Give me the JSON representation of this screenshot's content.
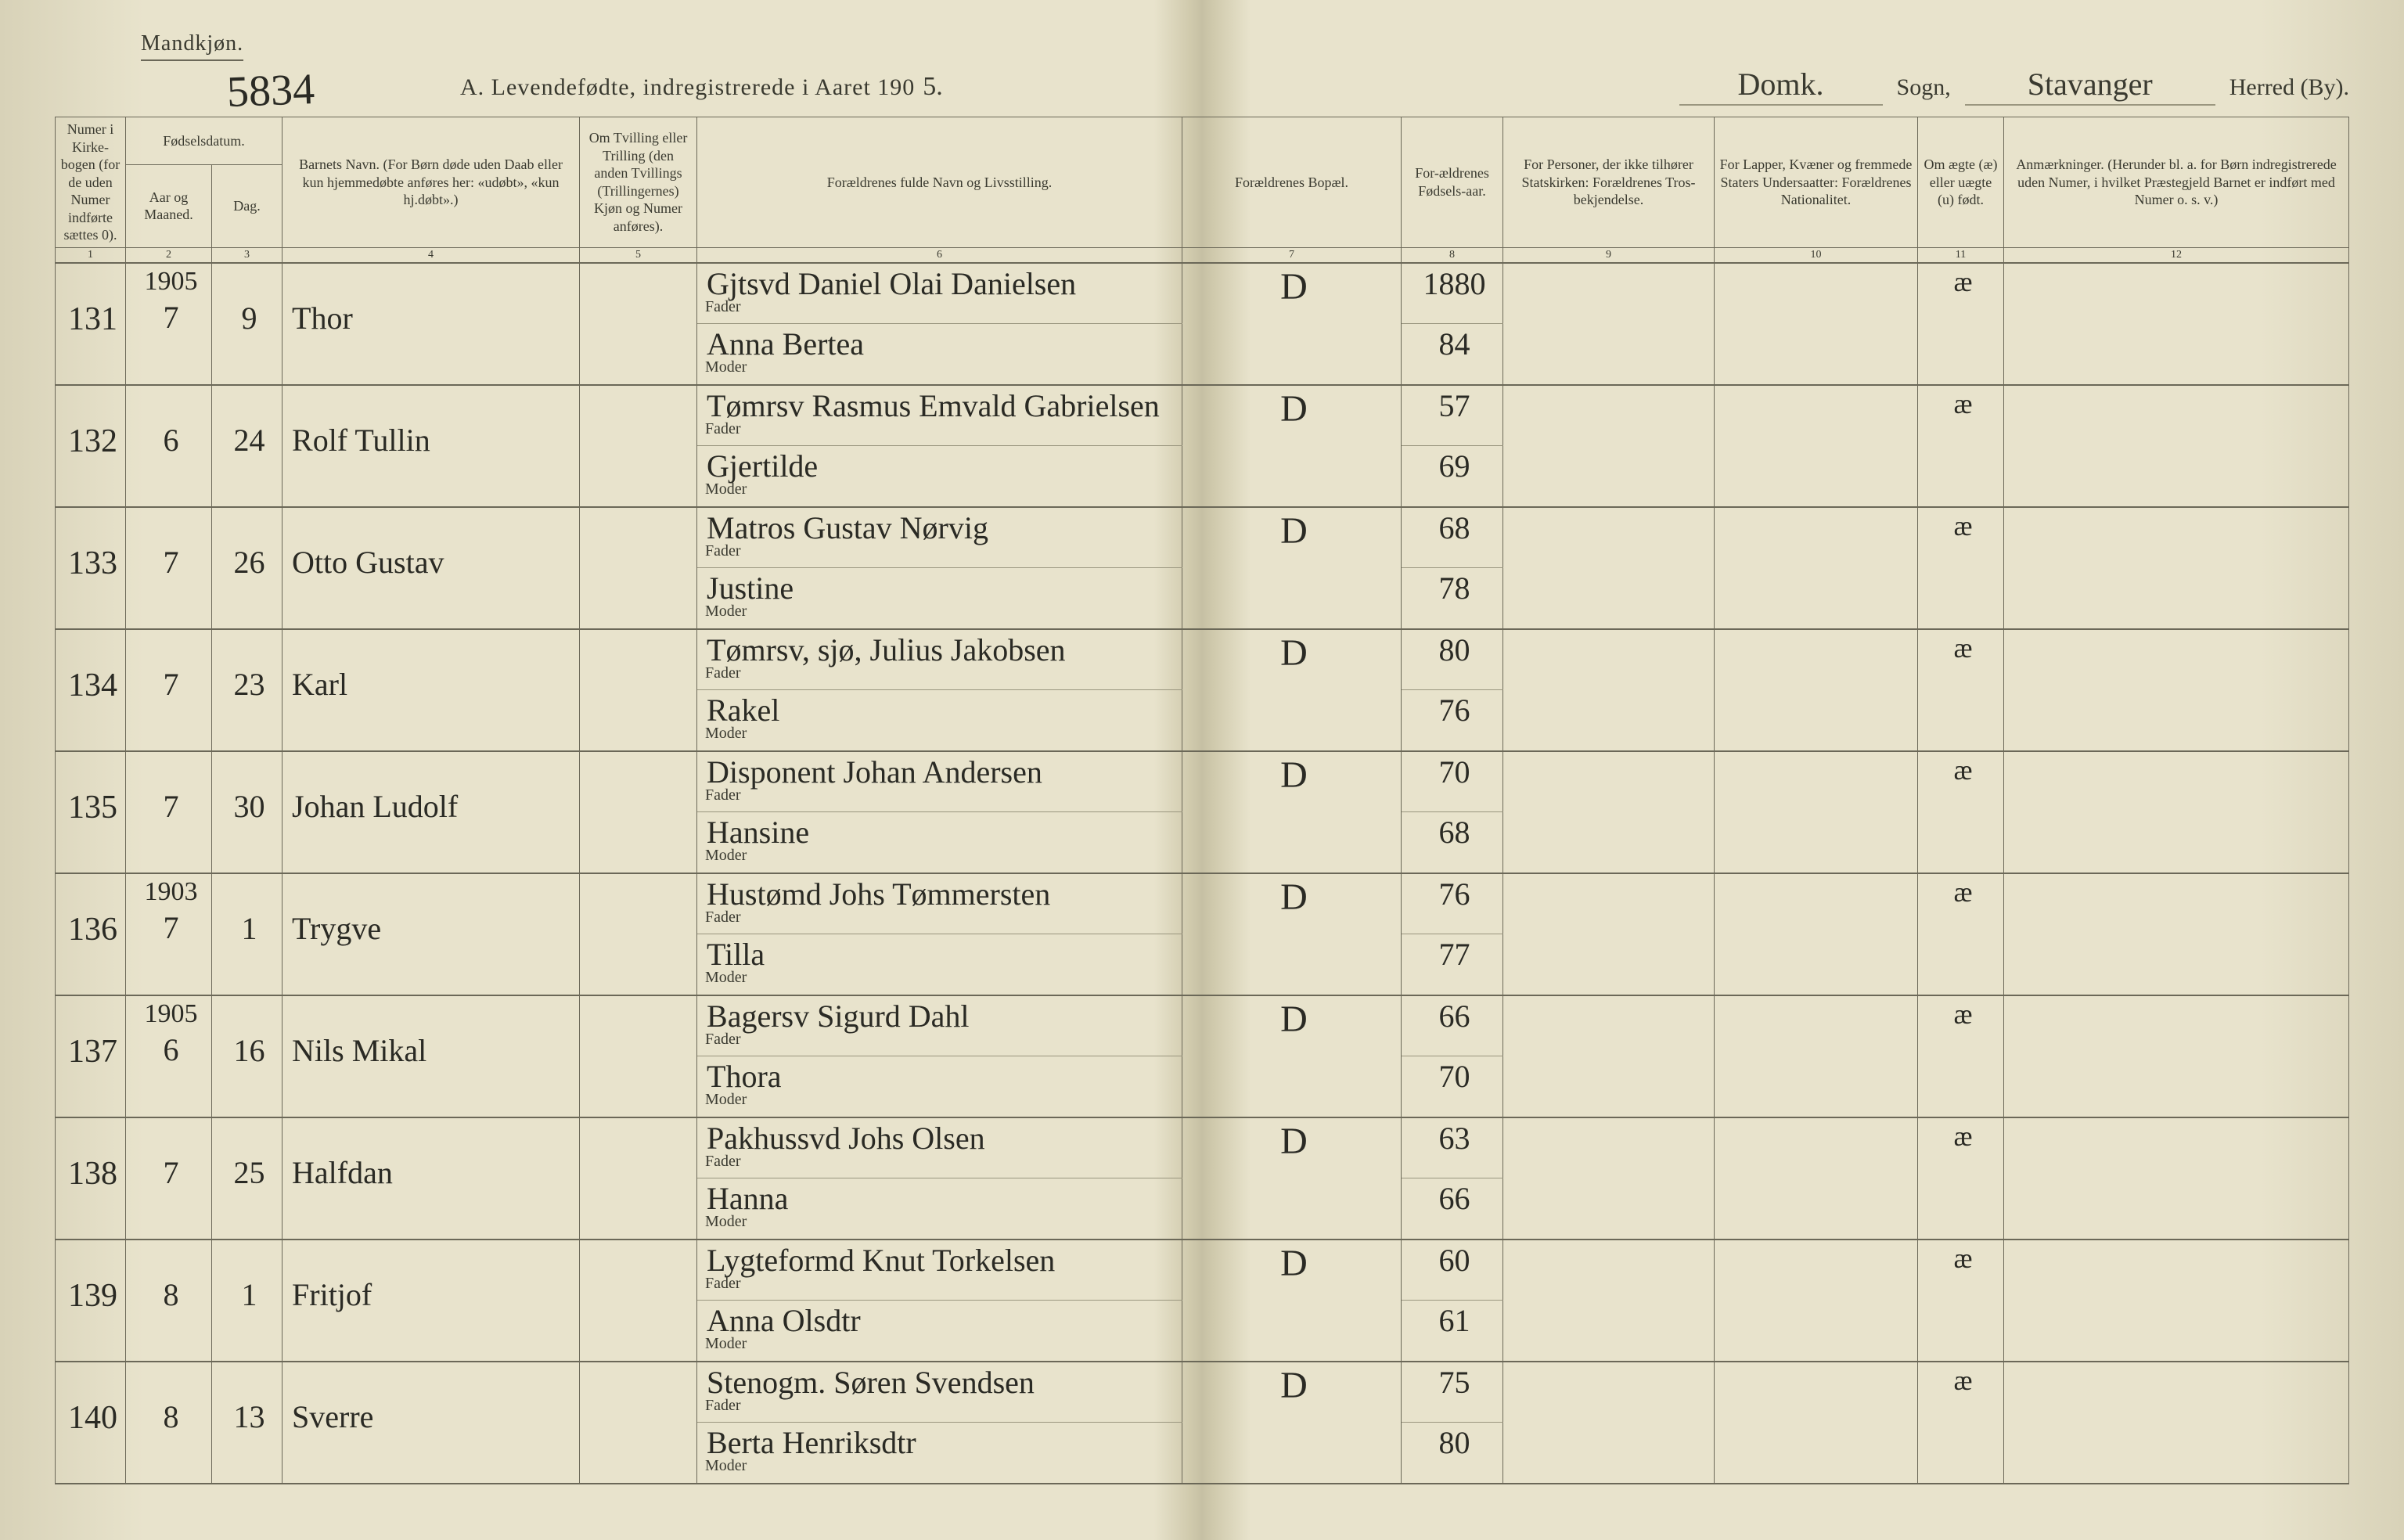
{
  "header": {
    "gender_label": "Mandkjøn.",
    "page_number_written": "5834",
    "title_prefix": "A.  Levendefødte, indregistrerede i Aaret 190",
    "year_suffix": "5.",
    "sogn_label": "Sogn,",
    "sogn_value": "Domk.",
    "herred_label": "Herred (By).",
    "herred_value": "Stavanger"
  },
  "columns": {
    "c1": "Numer i Kirke-bogen (for de uden Numer indførte sættes 0).",
    "c2_group": "Fødselsdatum.",
    "c2": "Aar og Maaned.",
    "c3": "Dag.",
    "c4": "Barnets Navn.\n(For Børn døde uden Daab eller kun hjemmedøbte anføres her: «udøbt», «kun hj.døbt».)",
    "c5": "Om Tvilling eller Trilling (den anden Tvillings (Trillingernes) Kjøn og Numer anføres).",
    "c6": "Forældrenes fulde Navn og Livsstilling.",
    "c7": "Forældrenes Bopæl.",
    "c8": "For-ældrenes Fødsels-aar.",
    "c9": "For Personer, der ikke tilhører Statskirken: Forældrenes Tros-bekjendelse.",
    "c10": "For Lapper, Kvæner og fremmede Staters Undersaatter: Forældrenes Nationalitet.",
    "c11": "Om ægte (æ) eller uægte (u) født.",
    "c12": "Anmærkninger.\n(Herunder bl. a. for Børn indregistrerede uden Numer, i hvilket Præstegjeld Barnet er indført med Numer o. s. v.)",
    "fader": "Fader",
    "moder": "Moder",
    "colnums": [
      "1",
      "2",
      "3",
      "4",
      "5",
      "6",
      "7",
      "8",
      "9",
      "10",
      "11",
      "12"
    ]
  },
  "year_in_col2": "1905",
  "entries": [
    {
      "num": "131",
      "month": "7",
      "day": "9",
      "name": "Thor",
      "fader": "Gjtsvd Daniel Olai Danielsen",
      "moder": "Anna Bertea",
      "bopael": "D",
      "year_f": "1880",
      "year_m": "84",
      "legit": "æ"
    },
    {
      "num": "132",
      "month": "6",
      "day": "24",
      "name": "Rolf Tullin",
      "fader": "Tømrsv Rasmus Emvald Gabrielsen",
      "moder": "Gjertilde",
      "bopael": "D",
      "year_f": "57",
      "year_m": "69",
      "legit": "æ"
    },
    {
      "num": "133",
      "month": "7",
      "day": "26",
      "name": "Otto Gustav",
      "fader": "Matros Gustav Nørvig",
      "moder": "Justine",
      "bopael": "D",
      "year_f": "68",
      "year_m": "78",
      "legit": "æ"
    },
    {
      "num": "134",
      "month": "7",
      "day": "23",
      "name": "Karl",
      "fader": "Tømrsv, sjø, Julius Jakobsen",
      "moder": "Rakel",
      "bopael": "D",
      "year_f": "80",
      "year_m": "76",
      "legit": "æ"
    },
    {
      "num": "135",
      "month": "7",
      "day": "30",
      "name": "Johan Ludolf",
      "fader": "Disponent Johan Andersen",
      "moder": "Hansine",
      "bopael": "D",
      "year_f": "70",
      "year_m": "68",
      "legit": "æ"
    },
    {
      "num": "136",
      "year_override": "1903",
      "month": "7",
      "day": "1",
      "name": "Trygve",
      "fader": "Hustømd Johs Tømmersten",
      "moder": "Tilla",
      "bopael": "D",
      "year_f": "76",
      "year_m": "77",
      "legit": "æ"
    },
    {
      "num": "137",
      "year_override": "1905",
      "month": "6",
      "day": "16",
      "name": "Nils Mikal",
      "fader": "Bagersv Sigurd Dahl",
      "moder": "Thora",
      "bopael": "D",
      "year_f": "66",
      "year_m": "70",
      "legit": "æ"
    },
    {
      "num": "138",
      "month": "7",
      "day": "25",
      "name": "Halfdan",
      "fader": "Pakhussvd Johs Olsen",
      "moder": "Hanna",
      "bopael": "D",
      "year_f": "63",
      "year_m": "66",
      "legit": "æ"
    },
    {
      "num": "139",
      "month": "8",
      "day": "1",
      "name": "Fritjof",
      "fader": "Lygteformd Knut Torkelsen",
      "moder": "Anna Olsdtr",
      "bopael": "D",
      "year_f": "60",
      "year_m": "61",
      "legit": "æ"
    },
    {
      "num": "140",
      "month": "8",
      "day": "13",
      "name": "Sverre",
      "fader": "Stenogm. Søren Svendsen",
      "moder": "Berta Henriksdtr",
      "bopael": "D",
      "year_f": "75",
      "year_m": "80",
      "legit": "æ"
    }
  ]
}
